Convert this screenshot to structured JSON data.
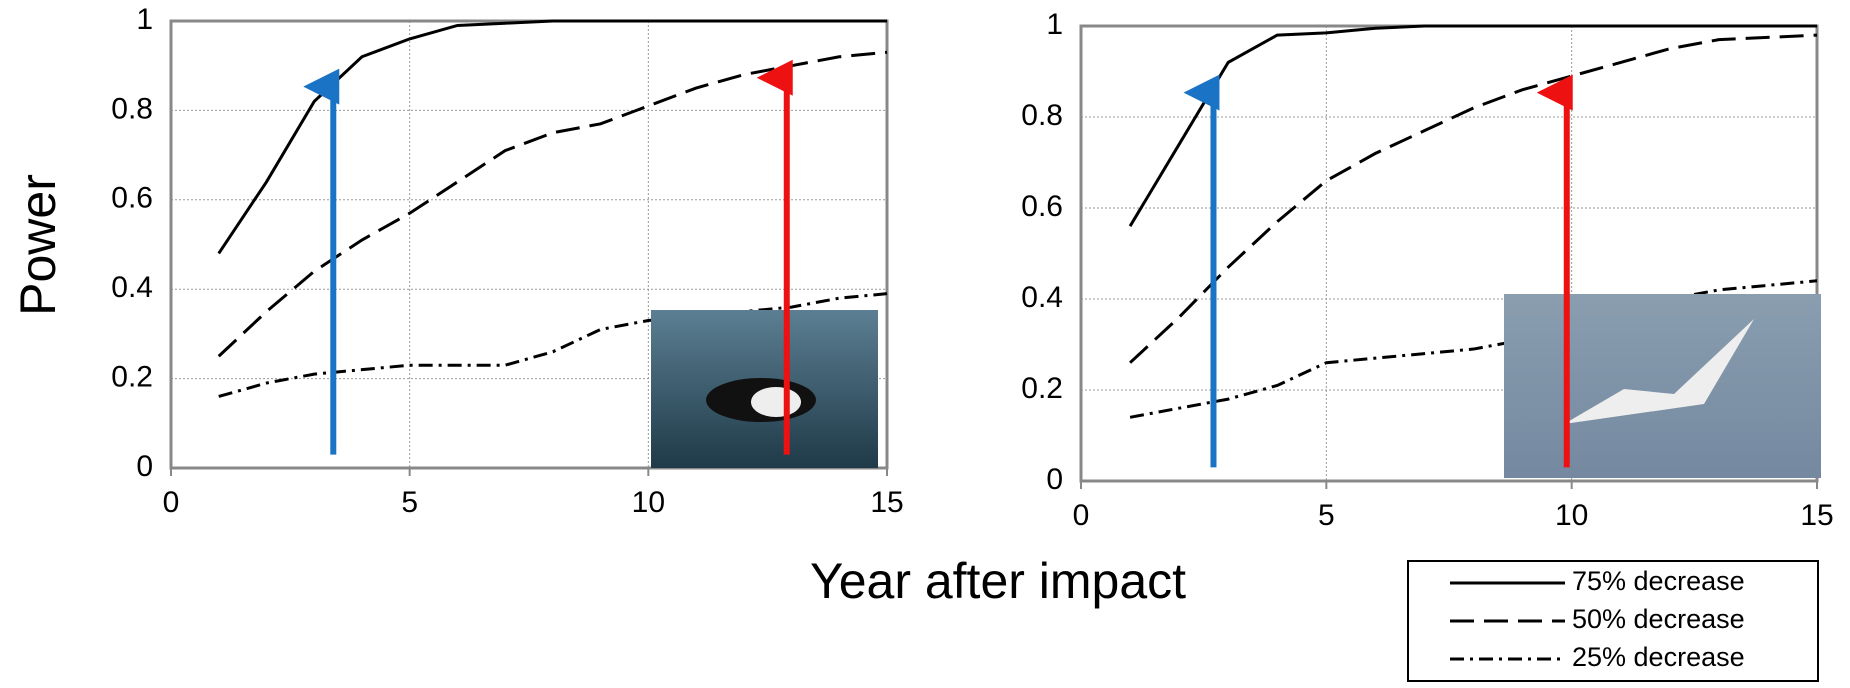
{
  "chart_data": [
    {
      "type": "line",
      "ylabel": "Power",
      "xlabel": "Year after impact",
      "x": [
        1,
        2,
        3,
        4,
        5,
        6,
        7,
        8,
        9,
        10,
        11,
        12,
        13,
        14,
        15
      ],
      "xlim": [
        0,
        15
      ],
      "xticks": [
        0,
        5,
        10,
        15
      ],
      "ylim": [
        0,
        1
      ],
      "yticks": [
        0,
        0.2,
        0.4,
        0.6,
        0.8,
        1
      ],
      "grid": true,
      "series": [
        {
          "color": "#000000",
          "dash": "none",
          "values": [
            0.48,
            0.64,
            0.82,
            0.92,
            0.96,
            0.99,
            0.995,
            1,
            1,
            1,
            1,
            1,
            1,
            1,
            1
          ]
        },
        {
          "color": "#000000",
          "dash": "24 10",
          "values": [
            0.25,
            0.35,
            0.44,
            0.51,
            0.57,
            0.64,
            0.71,
            0.75,
            0.77,
            0.81,
            0.85,
            0.88,
            0.9,
            0.92,
            0.93
          ]
        },
        {
          "color": "#000000",
          "dash": "14 6 3 6",
          "values": [
            0.16,
            0.19,
            0.21,
            0.22,
            0.23,
            0.23,
            0.23,
            0.26,
            0.31,
            0.33,
            0.34,
            0.35,
            0.36,
            0.38,
            0.39
          ]
        }
      ],
      "arrows": [
        {
          "x": 3.4,
          "y_from": 0.03,
          "y_to": 0.88,
          "color": "#1a73c4"
        },
        {
          "x": 12.9,
          "y_from": 0.03,
          "y_to": 0.9,
          "color": "#ee1111"
        }
      ]
    },
    {
      "type": "line",
      "x": [
        1,
        2,
        3,
        4,
        5,
        6,
        7,
        8,
        9,
        10,
        11,
        12,
        13,
        14,
        15
      ],
      "xlim": [
        0,
        15
      ],
      "xticks": [
        0,
        5,
        10,
        15
      ],
      "ylim": [
        0,
        1
      ],
      "yticks": [
        0,
        0.2,
        0.4,
        0.6,
        0.8,
        1
      ],
      "grid": true,
      "series": [
        {
          "name": "75% decrease",
          "color": "#000000",
          "dash": "none",
          "values": [
            0.56,
            0.74,
            0.92,
            0.98,
            0.985,
            0.995,
            1,
            1,
            1,
            1,
            1,
            1,
            1,
            1,
            1
          ]
        },
        {
          "name": "50% decrease",
          "color": "#000000",
          "dash": "24 10",
          "values": [
            0.26,
            0.36,
            0.47,
            0.57,
            0.66,
            0.72,
            0.77,
            0.82,
            0.86,
            0.89,
            0.92,
            0.95,
            0.97,
            0.975,
            0.98
          ]
        },
        {
          "name": "25% decrease",
          "color": "#000000",
          "dash": "14 6 3 6",
          "values": [
            0.14,
            0.16,
            0.18,
            0.21,
            0.26,
            0.27,
            0.28,
            0.29,
            0.31,
            0.34,
            0.37,
            0.4,
            0.42,
            0.43,
            0.44
          ]
        }
      ],
      "arrows": [
        {
          "x": 2.7,
          "y_from": 0.03,
          "y_to": 0.88,
          "color": "#1a73c4"
        },
        {
          "x": 9.9,
          "y_from": 0.03,
          "y_to": 0.88,
          "color": "#ee1111"
        }
      ]
    }
  ]
}
